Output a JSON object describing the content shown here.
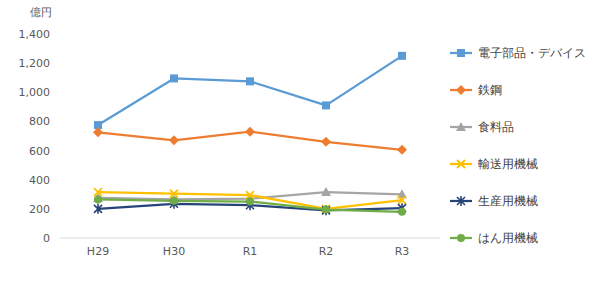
{
  "chart_data": {
    "type": "line",
    "y_label": "億円",
    "categories": [
      "H29",
      "H30",
      "R1",
      "R2",
      "R3"
    ],
    "series": [
      {
        "name": "電子部品・デバイス",
        "color": "#5b9bd5",
        "marker": "square",
        "values": [
          775,
          1095,
          1075,
          910,
          1250
        ]
      },
      {
        "name": "鉄鋼",
        "color": "#ed7d31",
        "marker": "diamond",
        "values": [
          725,
          670,
          730,
          660,
          605
        ]
      },
      {
        "name": "食料品",
        "color": "#a5a5a5",
        "marker": "triangle",
        "values": [
          275,
          265,
          270,
          315,
          300
        ]
      },
      {
        "name": "輸送用機械",
        "color": "#ffc000",
        "marker": "x",
        "values": [
          315,
          305,
          295,
          200,
          260
        ]
      },
      {
        "name": "生産用機械",
        "color": "#264478",
        "marker": "star",
        "values": [
          200,
          235,
          225,
          190,
          205
        ]
      },
      {
        "name": "はん用機械",
        "color": "#70ad47",
        "marker": "circle",
        "values": [
          265,
          255,
          250,
          195,
          180
        ]
      }
    ],
    "ylim": [
      0,
      1400
    ],
    "yticks": [
      {
        "value": 1400,
        "label": "1,400"
      },
      {
        "value": 1200,
        "label": "1,200"
      },
      {
        "value": 1000,
        "label": "1,000"
      },
      800,
      600,
      400,
      200,
      0
    ],
    "grid": false,
    "legend": "right"
  }
}
